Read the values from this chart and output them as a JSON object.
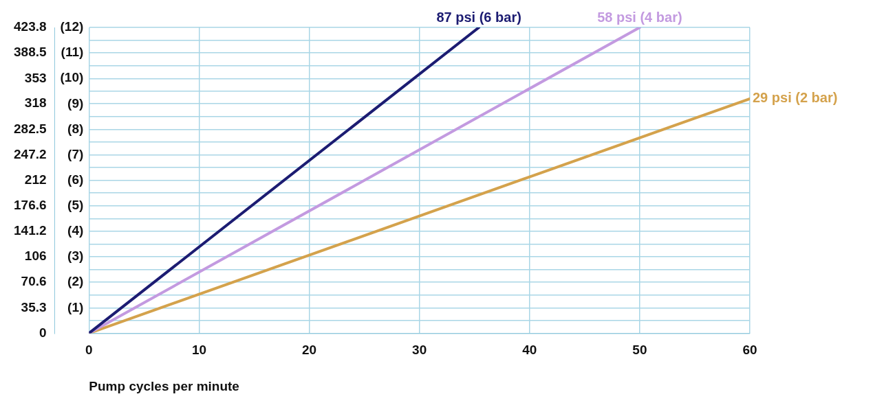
{
  "chart_data": {
    "type": "line",
    "xlabel": "Pump cycles per minute",
    "series": [
      {
        "name": "87 psi (6 bar)",
        "color": "#1c1c72",
        "x": [
          0,
          35.4
        ],
        "values": [
          0,
          423.8
        ]
      },
      {
        "name": "58 psi (4 bar)",
        "color": "#c39ae0",
        "x": [
          0,
          50
        ],
        "values": [
          0,
          423.8
        ]
      },
      {
        "name": "29 psi (2 bar)",
        "color": "#d4a24c",
        "x": [
          0,
          60
        ],
        "values": [
          0,
          325
        ]
      }
    ],
    "xlim": [
      0,
      60
    ],
    "xticks": [
      0,
      10,
      20,
      30,
      40,
      50,
      60
    ],
    "ylim": [
      0,
      423.8
    ],
    "yticks": [
      0,
      {
        "value": 17.7,
        "label": null
      },
      35.3,
      {
        "value": 53,
        "label": null
      },
      70.6,
      {
        "value": 88.3,
        "label": null
      },
      106,
      {
        "value": 123.6,
        "label": null
      },
      141.2,
      {
        "value": 158.9,
        "label": null
      },
      176.6,
      {
        "value": 194.3,
        "label": null
      },
      212,
      {
        "value": 229.6,
        "label": null
      },
      247.2,
      {
        "value": 264.9,
        "label": null
      },
      282.5,
      {
        "value": 300.3,
        "label": null
      },
      318,
      {
        "value": 335.5,
        "label": null
      },
      353,
      {
        "value": 370.8,
        "label": null
      },
      388.5,
      {
        "value": 406.2,
        "label": null
      },
      423.8
    ],
    "y2lim": [
      0,
      12
    ],
    "y2ticks": [
      {
        "value": 1,
        "label": "(1)"
      },
      {
        "value": 2,
        "label": "(2)"
      },
      {
        "value": 3,
        "label": "(3)"
      },
      {
        "value": 4,
        "label": "(4)"
      },
      {
        "value": 5,
        "label": "(5)"
      },
      {
        "value": 6,
        "label": "(6)"
      },
      {
        "value": 7,
        "label": "(7)"
      },
      {
        "value": 8,
        "label": "(8)"
      },
      {
        "value": 9,
        "label": "(9)"
      },
      {
        "value": 10,
        "label": "(10)"
      },
      {
        "value": 11,
        "label": "(11)"
      },
      {
        "value": 12,
        "label": "(12)"
      }
    ],
    "grid": true,
    "legend": false,
    "marker": "none",
    "line_style": "solid"
  }
}
